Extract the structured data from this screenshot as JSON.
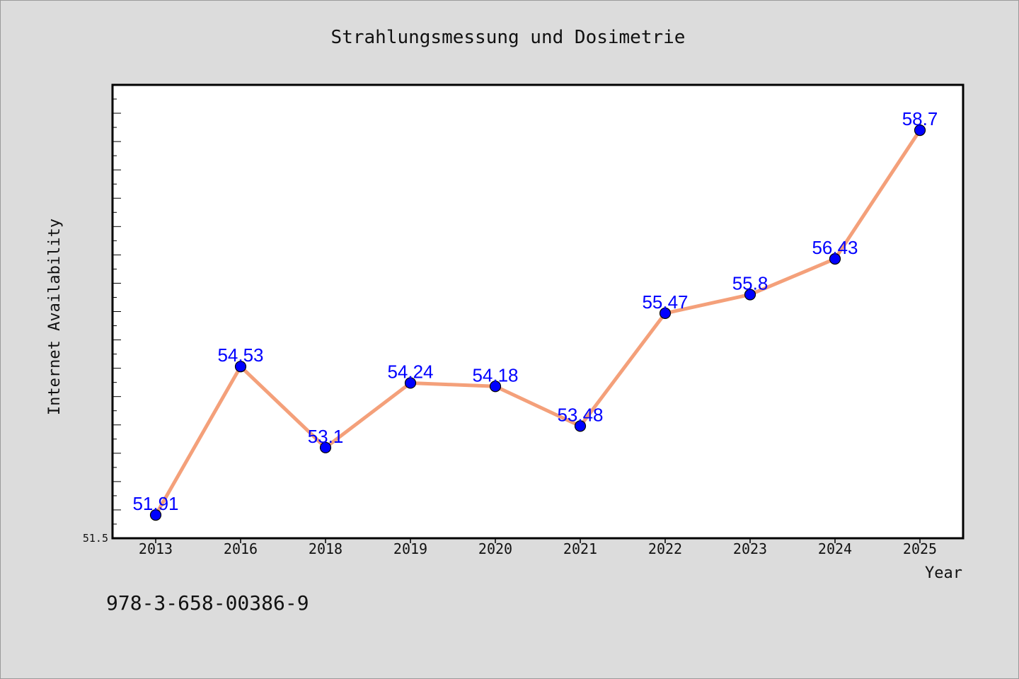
{
  "chart_data": {
    "type": "line",
    "title": "Strahlungsmessung und Dosimetrie",
    "xlabel": "Year",
    "ylabel": "Internet Availability",
    "categories": [
      "2013",
      "2016",
      "2018",
      "2019",
      "2020",
      "2021",
      "2022",
      "2023",
      "2024",
      "2025"
    ],
    "series": [
      {
        "values": [
          51.91,
          54.53,
          53.1,
          54.24,
          54.18,
          53.48,
          55.47,
          55.8,
          56.43,
          58.7
        ],
        "data_labels": [
          "51.91",
          "54.53",
          "53.1",
          "54.24",
          "54.18",
          "53.48",
          "55.47",
          "55.8",
          "56.43",
          "58.7"
        ]
      }
    ],
    "ylim": [
      51.5,
      59.5
    ],
    "ytick_labels": [
      "51.5"
    ],
    "grid": false,
    "line_color": "#f4a07a",
    "marker_color": "#0000ff",
    "label_color": "#0000ff"
  },
  "footer_text": "978-3-658-00386-9"
}
